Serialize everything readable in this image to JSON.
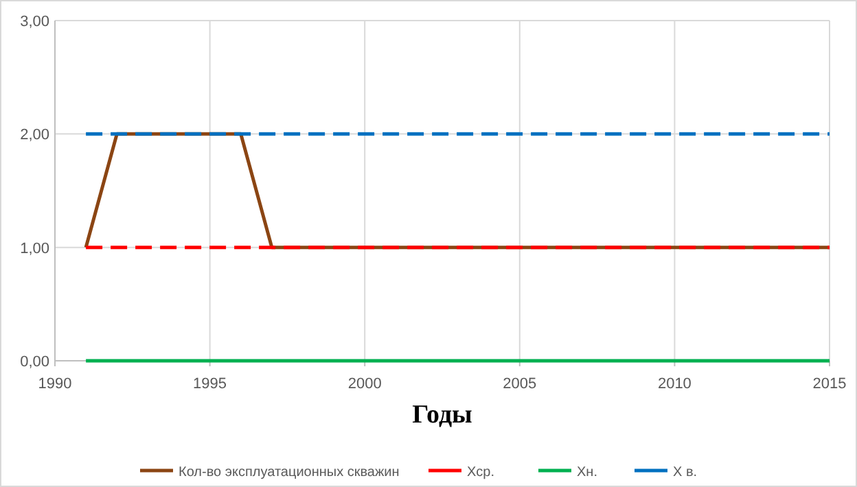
{
  "chart_data": {
    "type": "line",
    "xlabel": "Годы",
    "x": [
      1991,
      1992,
      1993,
      1994,
      1995,
      1996,
      1997,
      1998,
      1999,
      2000,
      2001,
      2002,
      2003,
      2004,
      2005,
      2006,
      2007,
      2008,
      2009,
      2010,
      2011,
      2012,
      2013,
      2014,
      2015
    ],
    "series": [
      {
        "name": "Кол-во эксплуатационных скважин",
        "color": "#8b4513",
        "line_style": "solid",
        "values": [
          1,
          2,
          2,
          2,
          2,
          2,
          1,
          1,
          1,
          1,
          1,
          1,
          1,
          1,
          1,
          1,
          1,
          1,
          1,
          1,
          1,
          1,
          1,
          1,
          1
        ]
      },
      {
        "name": "Хср.",
        "color": "#ff0000",
        "line_style": "dashed",
        "values": [
          1,
          1,
          1,
          1,
          1,
          1,
          1,
          1,
          1,
          1,
          1,
          1,
          1,
          1,
          1,
          1,
          1,
          1,
          1,
          1,
          1,
          1,
          1,
          1,
          1
        ]
      },
      {
        "name": "Хн.",
        "color": "#00b050",
        "line_style": "solid",
        "values": [
          0,
          0,
          0,
          0,
          0,
          0,
          0,
          0,
          0,
          0,
          0,
          0,
          0,
          0,
          0,
          0,
          0,
          0,
          0,
          0,
          0,
          0,
          0,
          0,
          0
        ]
      },
      {
        "name": "Х в.",
        "color": "#0070c0",
        "line_style": "dashed",
        "values": [
          2,
          2,
          2,
          2,
          2,
          2,
          2,
          2,
          2,
          2,
          2,
          2,
          2,
          2,
          2,
          2,
          2,
          2,
          2,
          2,
          2,
          2,
          2,
          2,
          2
        ]
      }
    ],
    "xlim": [
      1990,
      2015
    ],
    "xticks": [
      1990,
      1995,
      2000,
      2005,
      2010,
      2015
    ],
    "ylim": [
      0,
      3
    ],
    "yticks": [
      {
        "value": 0,
        "label": "0,00"
      },
      {
        "value": 1,
        "label": "1,00"
      },
      {
        "value": 2,
        "label": "2,00"
      },
      {
        "value": 3,
        "label": "3,00"
      }
    ],
    "grid": true,
    "legend": "bottom"
  }
}
